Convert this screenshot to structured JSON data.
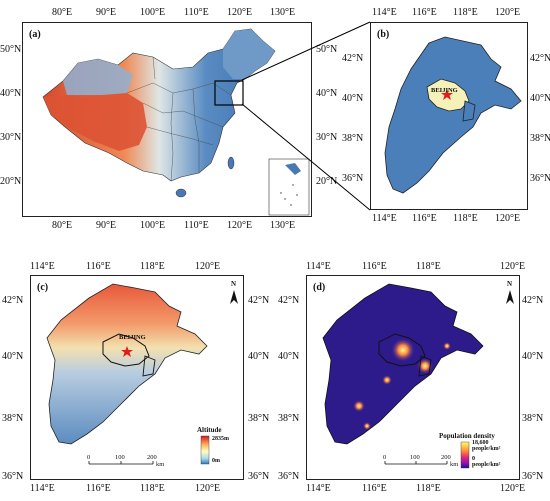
{
  "panels": {
    "a": {
      "label": "(a)",
      "lon_top": [
        "80°E",
        "90°E",
        "100°E",
        "110°E",
        "120°E",
        "130°E"
      ],
      "lon_bottom": [
        "80°E",
        "90°E",
        "100°E",
        "110°E",
        "120°E",
        "130°E"
      ],
      "lat_left": [
        "50°N",
        "40°N",
        "30°N",
        "20°N"
      ],
      "lat_right": [
        "50°N",
        "40°N",
        "30°N",
        "20°N"
      ]
    },
    "b": {
      "label": "(b)",
      "city": "BEIJING",
      "lon_top": [
        "114°E",
        "116°E",
        "118°E",
        "120°E"
      ],
      "lon_bottom": [
        "114°E",
        "116°E",
        "118°E",
        "120°E"
      ],
      "lat_left": [
        "42°N",
        "40°N",
        "38°N",
        "36°N"
      ],
      "lat_right": [
        "42°N",
        "40°N",
        "38°N",
        "36°N"
      ]
    },
    "c": {
      "label": "(c)",
      "city": "BEIJING",
      "lon_top": [
        "114°E",
        "116°E",
        "118°E",
        "120°E"
      ],
      "lon_bottom": [
        "114°E",
        "116°E",
        "118°E",
        "120°E"
      ],
      "lat_left": [
        "42°N",
        "40°N",
        "38°N",
        "36°N"
      ],
      "lat_right": [
        "42°N",
        "40°N",
        "38°N",
        "36°N"
      ],
      "legend": {
        "title": "Altitude",
        "max": "2835m",
        "min": "0m"
      },
      "scale": {
        "ticks": [
          "0",
          "100",
          "200"
        ],
        "unit": "km"
      },
      "north": "N"
    },
    "d": {
      "label": "(d)",
      "lon_top": [
        "114°E",
        "116°E",
        "118°E",
        "120°E"
      ],
      "lon_bottom": [
        "114°E",
        "116°E",
        "118°E",
        "120°E"
      ],
      "lat_left": [
        "42°N",
        "40°N",
        "38°N",
        "36°N"
      ],
      "lat_right": [
        "42°N",
        "40°N",
        "38°N",
        "36°N"
      ],
      "legend": {
        "title": "Population density",
        "max": "18,600",
        "max_unit": "people/km²",
        "min": "0",
        "min_unit": "people/km²"
      },
      "scale": {
        "ticks": [
          "0",
          "100",
          "200"
        ],
        "unit": "km"
      },
      "north": "N"
    }
  },
  "colors": {
    "china_east": "#4a78b4",
    "china_ne": "#6f9ac8",
    "tibet": "#e05a3a",
    "xinjiang": "#c9d6e6",
    "beijing_fill": "#f4f2b8",
    "region_blue": "#4a7fba",
    "pop_bg": "#2d1b8c",
    "star": "#e41a1c"
  }
}
